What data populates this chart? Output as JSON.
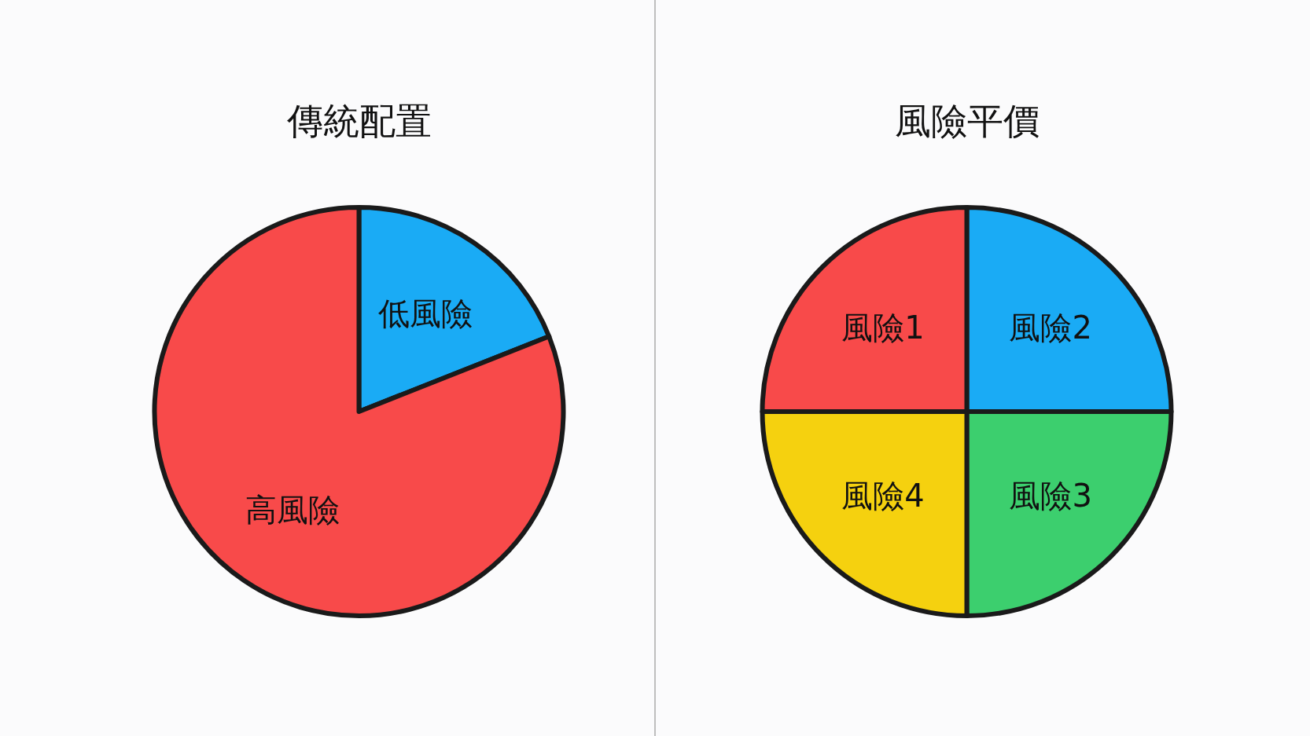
{
  "chart_data": [
    {
      "type": "pie",
      "title": "傳統配置",
      "categories": [
        "低風險",
        "高風險"
      ],
      "values": [
        19,
        81
      ],
      "colors": [
        "#1aabf5",
        "#f84a4a"
      ]
    },
    {
      "type": "pie",
      "title": "風險平價",
      "categories": [
        "風險2",
        "風險3",
        "風險4",
        "風險1"
      ],
      "values": [
        25,
        25,
        25,
        25
      ],
      "colors": [
        "#1aabf5",
        "#3ccf6e",
        "#f5d10f",
        "#f84a4a"
      ]
    }
  ]
}
